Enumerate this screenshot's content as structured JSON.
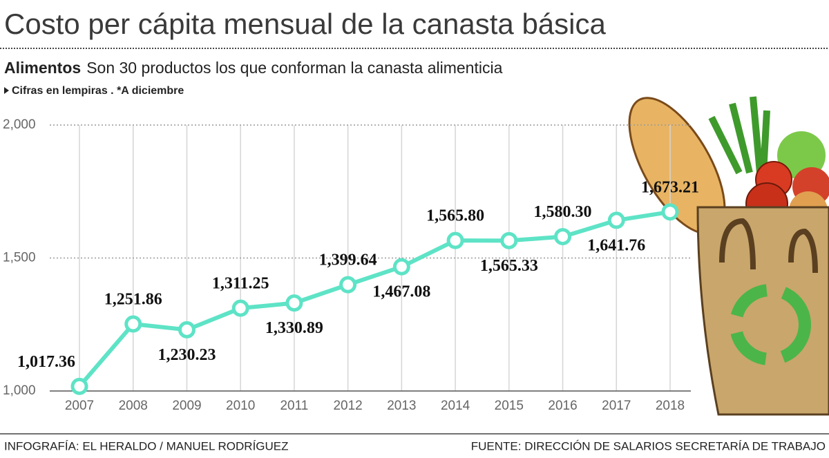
{
  "chart_data": {
    "type": "line",
    "title": "Costo per cápita mensual de la canasta básica",
    "subtitle_bold": "Alimentos",
    "subtitle": "Son 30 productos los que conforman la canasta alimenticia",
    "note": "Cifras en lempiras . *A diciembre",
    "credit": "INFOGRAFÍA: EL HERALDO / MANUEL RODRÍGUEZ",
    "source": "FUENTE: DIRECCIÓN DE SALARIOS SECRETARÍA DE TRABAJO",
    "categories": [
      "2007",
      "2008",
      "2009",
      "2010",
      "2011",
      "2012",
      "2013",
      "2014",
      "2015",
      "2016",
      "2017",
      "2018"
    ],
    "series": [
      {
        "color": "#5ee3c6",
        "values": [
          1017.36,
          1251.86,
          1230.23,
          1311.25,
          1330.89,
          1399.64,
          1467.08,
          1565.8,
          1565.33,
          1580.3,
          1641.76,
          1673.21
        ],
        "value_labels": [
          "1,017.36",
          "1,251.86",
          "1,230.23",
          "1,311.25",
          "1,330.89",
          "1,399.64",
          "1,467.08",
          "1,565.80",
          "1,565.33",
          "1,580.30",
          "1,641.76",
          "1,673.21"
        ]
      }
    ],
    "ylim": [
      1000,
      2000
    ],
    "yticks": [
      {
        "value": 1000,
        "label": "1,000"
      },
      {
        "value": 1500,
        "label": "1,500"
      },
      {
        "value": 2000,
        "label": "2,000"
      }
    ],
    "grid": true
  }
}
